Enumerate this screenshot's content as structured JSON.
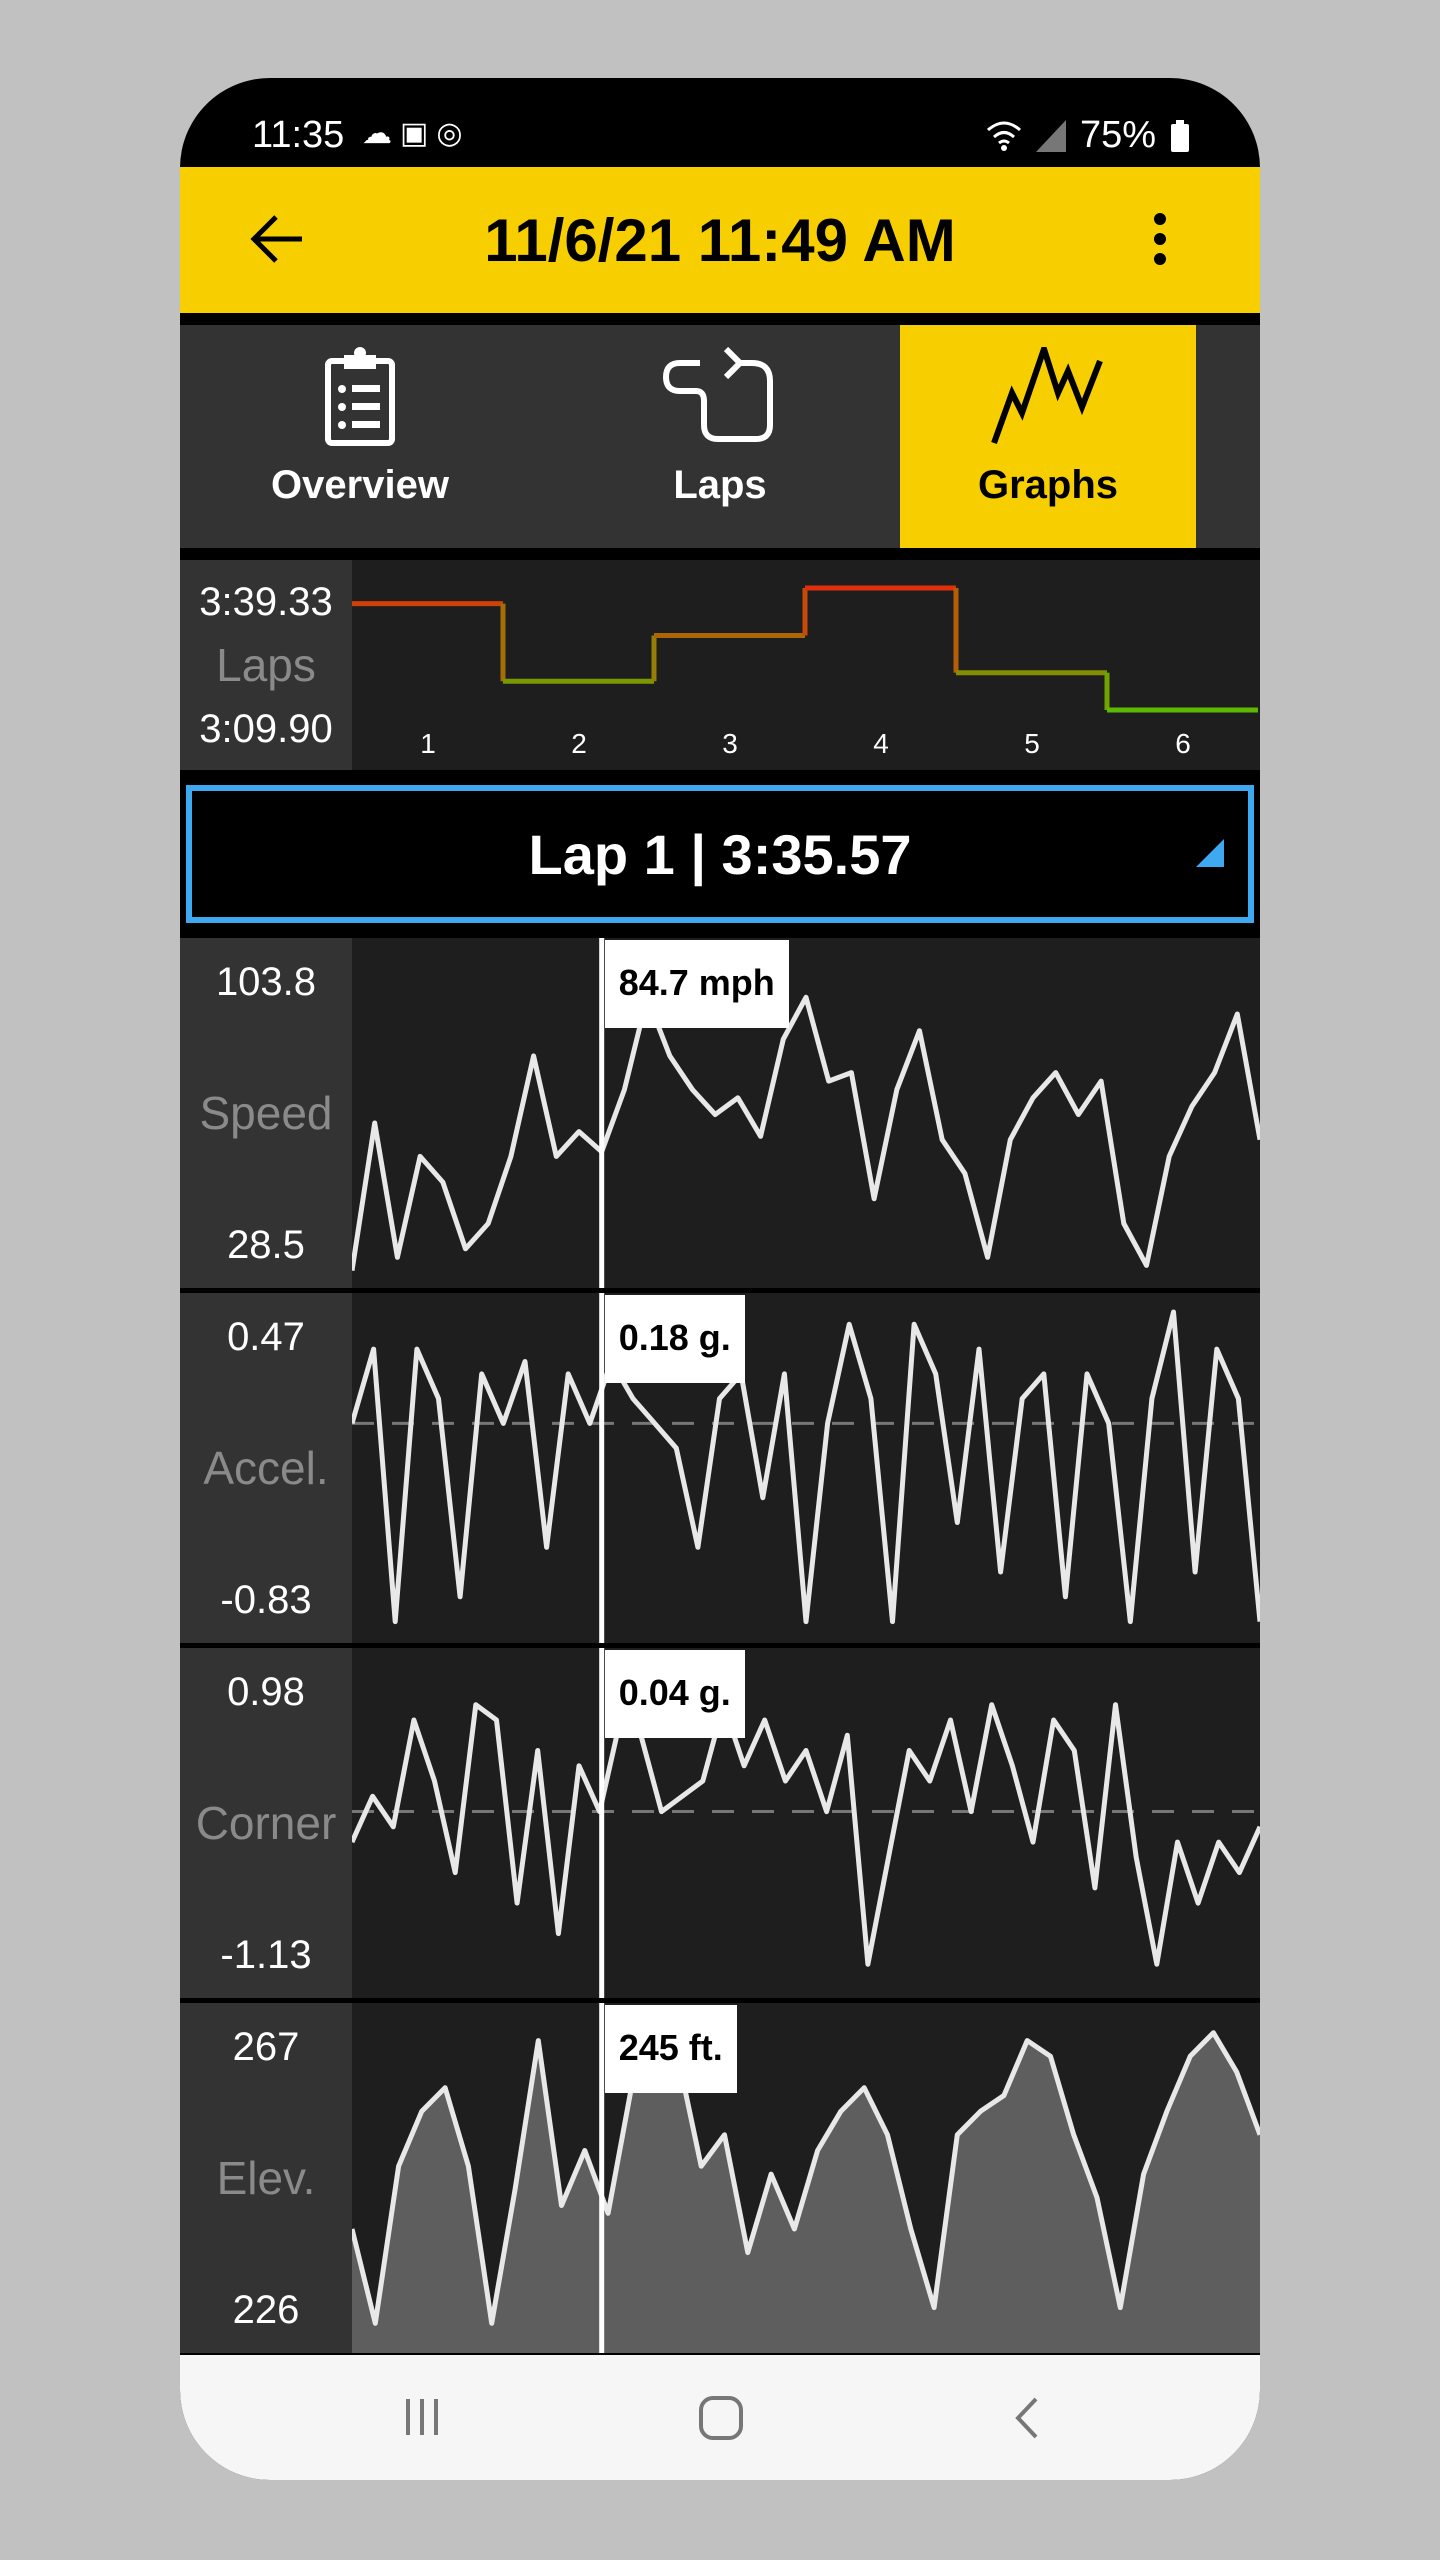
{
  "status_bar": {
    "time": "11:35",
    "notification_icons": [
      "cloud-icon",
      "gallery-icon",
      "chrome-icon"
    ],
    "battery": "75%",
    "system_icons": [
      "wifi-icon",
      "signal-no-sim-icon",
      "battery-icon"
    ]
  },
  "app_bar": {
    "title": "11/6/21 11:49 AM",
    "back_icon": "arrow-left-icon",
    "menu_icon": "more-vertical-icon"
  },
  "tabs": [
    {
      "label": "Overview",
      "icon": "clipboard-icon",
      "active": false
    },
    {
      "label": "Laps",
      "icon": "track-loop-icon",
      "active": false
    },
    {
      "label": "Graphs",
      "icon": "graph-icon",
      "active": true
    }
  ],
  "lap_chart": {
    "max_label": "3:39.33",
    "title": "Laps",
    "min_label": "3:09.90",
    "laps": [
      "1",
      "2",
      "3",
      "4",
      "5",
      "6"
    ],
    "lap_times_sec": [
      215.57,
      196.85,
      207.88,
      219.33,
      198.89,
      189.9
    ],
    "range_sec": [
      189.9,
      219.33
    ],
    "colors": {
      "slow": "#e0300a",
      "fast": "#5cb800"
    }
  },
  "lap_selector": {
    "value": "Lap 1 | 3:35.57",
    "accent": "#3ea8f0"
  },
  "cursor_fraction": 0.275,
  "graphs": [
    {
      "name": "speed",
      "label": "Speed",
      "max": "103.8",
      "min": "28.5",
      "range": [
        28.5,
        103.8
      ],
      "readout": "84.7 mph",
      "zero_line": false,
      "fill": false,
      "values": [
        29.3,
        63.8,
        32.4,
        56,
        50,
        34.4,
        40.3,
        56,
        79.5,
        56,
        61.8,
        57.1,
        71.6,
        93.2,
        79.5,
        71.6,
        65.8,
        69.7,
        60.7,
        83.4,
        93.2,
        73.6,
        75.6,
        46.1,
        71.6,
        85.4,
        59.9,
        52,
        32.4,
        59.9,
        69.7,
        75.6,
        65.8,
        73.6,
        40.3,
        30.5,
        56,
        67.7,
        75.6,
        89.3,
        59.9
      ]
    },
    {
      "name": "accel",
      "label": "Accel.",
      "max": "0.47",
      "min": "-0.83",
      "range": [
        -0.83,
        0.47
      ],
      "readout": "0.18 g.",
      "zero_line": true,
      "fill": false,
      "values": [
        0.0,
        0.3,
        -0.8,
        0.3,
        0.1,
        -0.7,
        0.2,
        0.0,
        0.25,
        -0.5,
        0.2,
        0.0,
        0.25,
        0.1,
        0.0,
        -0.1,
        -0.5,
        0.1,
        0.2,
        -0.3,
        0.2,
        -0.8,
        0.0,
        0.4,
        0.1,
        -0.8,
        0.4,
        0.2,
        -0.4,
        0.3,
        -0.6,
        0.1,
        0.2,
        -0.7,
        0.2,
        0.0,
        -0.8,
        0.1,
        0.45,
        -0.6,
        0.3,
        0.1,
        -0.8
      ]
    },
    {
      "name": "corner",
      "label": "Corner",
      "max": "0.98",
      "min": "-1.13",
      "range": [
        -1.13,
        0.98
      ],
      "readout": "0.04 g.",
      "zero_line": true,
      "fill": false,
      "values": [
        -0.2,
        0.1,
        -0.1,
        0.6,
        0.2,
        -0.4,
        0.7,
        0.6,
        -0.6,
        0.4,
        -0.8,
        0.3,
        0.0,
        0.6,
        0.5,
        0.0,
        0.1,
        0.2,
        0.7,
        0.3,
        0.6,
        0.2,
        0.4,
        0.0,
        0.5,
        -1.0,
        -0.3,
        0.4,
        0.2,
        0.6,
        0.0,
        0.7,
        0.3,
        -0.2,
        0.6,
        0.4,
        -0.5,
        0.7,
        -0.3,
        -1.0,
        -0.2,
        -0.6,
        -0.2,
        -0.4,
        -0.1
      ]
    },
    {
      "name": "elevation",
      "label": "Elev.",
      "max": "267",
      "min": "226",
      "range": [
        226,
        267
      ],
      "readout": "245 ft.",
      "zero_line": false,
      "fill": true,
      "values": [
        240,
        228,
        248,
        255,
        258,
        248,
        228,
        245,
        264,
        243,
        250,
        242,
        258,
        262,
        262,
        248,
        252,
        237,
        247,
        240,
        250,
        255,
        258,
        252,
        240,
        230,
        252,
        255,
        257,
        264,
        262,
        252,
        244,
        230,
        247,
        255,
        262,
        265,
        260,
        252
      ]
    }
  ],
  "nav_bar": {
    "icons": [
      "recent-apps-icon",
      "home-icon",
      "back-icon"
    ]
  }
}
